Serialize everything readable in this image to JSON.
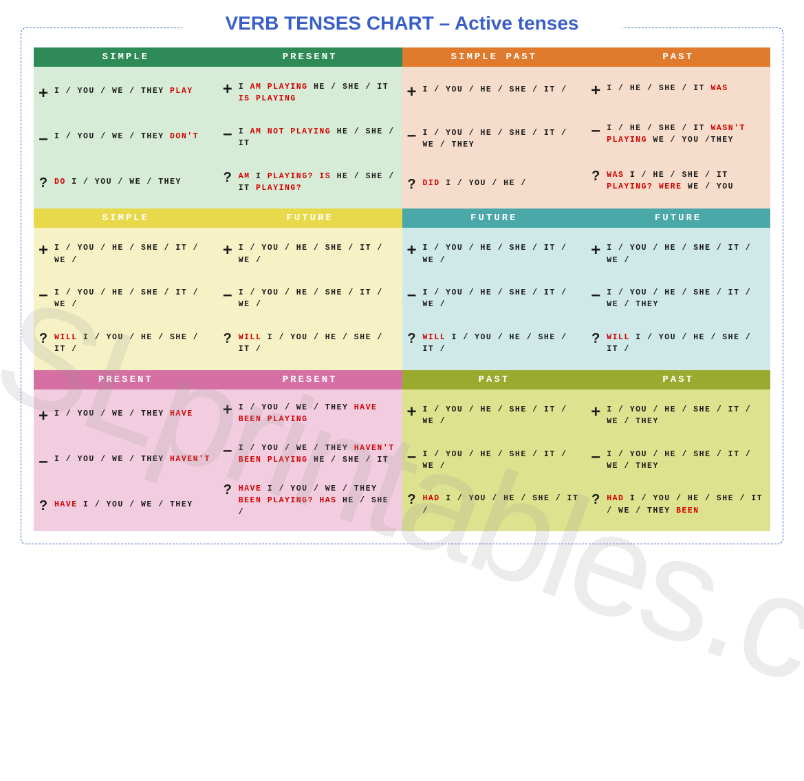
{
  "title": "VERB TENSES CHART – Active tenses",
  "watermark": "SLprintables.com",
  "layout": {
    "cols": 4,
    "rows": 3
  },
  "typography": {
    "title_fontsize": 28,
    "title_color": "#3b5fc9",
    "header_fontsize": 14,
    "body_fontsize": 11.5,
    "highlight_color": "#d40000",
    "symbol_color": "#1a1a1a"
  },
  "frame": {
    "border_color": "#3b5fc9",
    "style": "dashed",
    "radius": 8
  },
  "cells": [
    {
      "header": "Simple",
      "header_bg": "#2e8b57",
      "body_bg": "#d6ecd6",
      "plus": [
        {
          "t": "I / you / we / they ",
          "r": 0
        },
        {
          "t": "play",
          "r": 1
        }
      ],
      "minus": [
        {
          "t": "I / you / we / they ",
          "r": 0
        },
        {
          "t": "don't",
          "r": 1
        }
      ],
      "quest": [
        {
          "t": "Do",
          "r": 1
        },
        {
          "t": " I / you / we / they",
          "r": 0
        }
      ]
    },
    {
      "header": "Present",
      "header_bg": "#2e8b57",
      "body_bg": "#d6ecd6",
      "plus": [
        {
          "t": "I ",
          "r": 0
        },
        {
          "t": "am playing",
          "r": 1
        },
        {
          "t": " he / she / it ",
          "r": 0
        },
        {
          "t": "is playing",
          "r": 1
        }
      ],
      "minus": [
        {
          "t": "I ",
          "r": 0
        },
        {
          "t": "am not playing",
          "r": 1
        },
        {
          "t": " he / she / it",
          "r": 0
        }
      ],
      "quest": [
        {
          "t": "Am",
          "r": 1
        },
        {
          "t": " I ",
          "r": 0
        },
        {
          "t": "playing? Is",
          "r": 1
        },
        {
          "t": " he / she / it ",
          "r": 0
        },
        {
          "t": "playing?",
          "r": 1
        }
      ]
    },
    {
      "header": "Simple Past",
      "header_bg": "#e07b2e",
      "body_bg": "#f5dccb",
      "plus": [
        {
          "t": "I / you / he / she / it /",
          "r": 0
        }
      ],
      "minus": [
        {
          "t": "I / you / he / she / it / we / they",
          "r": 0
        }
      ],
      "quest": [
        {
          "t": "Did",
          "r": 1
        },
        {
          "t": " I / you / he /",
          "r": 0
        }
      ]
    },
    {
      "header": "Past",
      "header_bg": "#e07b2e",
      "body_bg": "#f5dccb",
      "plus": [
        {
          "t": "I / he / she / it ",
          "r": 0
        },
        {
          "t": "was",
          "r": 1
        }
      ],
      "minus": [
        {
          "t": "I / he / she / it ",
          "r": 0
        },
        {
          "t": "wasn't playing",
          "r": 1
        },
        {
          "t": " we / you /they",
          "r": 0
        }
      ],
      "quest": [
        {
          "t": "Was",
          "r": 1
        },
        {
          "t": " I / he / she / it ",
          "r": 0
        },
        {
          "t": "playing? Were",
          "r": 1
        },
        {
          "t": " we / you",
          "r": 0
        }
      ]
    },
    {
      "header": "Simple",
      "header_bg": "#e8d94a",
      "body_bg": "#f6f2c6",
      "plus": [
        {
          "t": "I / you / he / she / it / we /",
          "r": 0
        }
      ],
      "minus": [
        {
          "t": "I / you / he / she / it / we /",
          "r": 0
        }
      ],
      "quest": [
        {
          "t": "Will",
          "r": 1
        },
        {
          "t": " I / you / he / she / it /",
          "r": 0
        }
      ]
    },
    {
      "header": "Future",
      "header_bg": "#e8d94a",
      "body_bg": "#f6f2c6",
      "plus": [
        {
          "t": "I / you / he / she / it / we /",
          "r": 0
        }
      ],
      "minus": [
        {
          "t": "I / you / he / she / it / we /",
          "r": 0
        }
      ],
      "quest": [
        {
          "t": "Will",
          "r": 1
        },
        {
          "t": " I / you / he / she / it /",
          "r": 0
        }
      ]
    },
    {
      "header": "Future",
      "header_bg": "#4aa8a8",
      "body_bg": "#cfe8e8",
      "plus": [
        {
          "t": "I / you / he / she / it / we /",
          "r": 0
        }
      ],
      "minus": [
        {
          "t": "I / you / he / she / it / we /",
          "r": 0
        }
      ],
      "quest": [
        {
          "t": "Will",
          "r": 1
        },
        {
          "t": " I / you / he / she / it /",
          "r": 0
        }
      ]
    },
    {
      "header": "Future",
      "header_bg": "#4aa8a8",
      "body_bg": "#cfe8e8",
      "plus": [
        {
          "t": "I / you / he / she / it / we /",
          "r": 0
        }
      ],
      "minus": [
        {
          "t": "I / you / he / she / it / we / they",
          "r": 0
        }
      ],
      "quest": [
        {
          "t": "Will",
          "r": 1
        },
        {
          "t": " I / you / he / she / it /",
          "r": 0
        }
      ]
    },
    {
      "header": "Present",
      "header_bg": "#d66fa3",
      "body_bg": "#f2cde0",
      "plus": [
        {
          "t": "I / you / we / they ",
          "r": 0
        },
        {
          "t": "have",
          "r": 1
        }
      ],
      "minus": [
        {
          "t": "I / you / we / they ",
          "r": 0
        },
        {
          "t": "haven't",
          "r": 1
        }
      ],
      "quest": [
        {
          "t": "Have",
          "r": 1
        },
        {
          "t": " I / you / we / they",
          "r": 0
        }
      ]
    },
    {
      "header": "Present",
      "header_bg": "#d66fa3",
      "body_bg": "#f2cde0",
      "plus": [
        {
          "t": "I / you / we / they ",
          "r": 0
        },
        {
          "t": "have been playing",
          "r": 1
        }
      ],
      "minus": [
        {
          "t": "I / you / we / they ",
          "r": 0
        },
        {
          "t": "haven't been playing",
          "r": 1
        },
        {
          "t": " he / she / it",
          "r": 0
        }
      ],
      "quest": [
        {
          "t": "Have",
          "r": 1
        },
        {
          "t": " I / you / we / they ",
          "r": 0
        },
        {
          "t": "been playing? Has",
          "r": 1
        },
        {
          "t": " he / she /",
          "r": 0
        }
      ]
    },
    {
      "header": "Past",
      "header_bg": "#9aaa2e",
      "body_bg": "#dde28f",
      "plus": [
        {
          "t": "I / you / he / she / it / we /",
          "r": 0
        }
      ],
      "minus": [
        {
          "t": "I / you / he / she / it / we /",
          "r": 0
        }
      ],
      "quest": [
        {
          "t": "Had",
          "r": 1
        },
        {
          "t": " I / you / he / she / it /",
          "r": 0
        }
      ]
    },
    {
      "header": "Past",
      "header_bg": "#9aaa2e",
      "body_bg": "#dde28f",
      "plus": [
        {
          "t": "I / you / he / she / it / we / they",
          "r": 0
        }
      ],
      "minus": [
        {
          "t": "I / you / he / she / it / we / they",
          "r": 0
        }
      ],
      "quest": [
        {
          "t": "Had",
          "r": 1
        },
        {
          "t": " I / you / he / she / it / we / they ",
          "r": 0
        },
        {
          "t": "been",
          "r": 1
        }
      ]
    }
  ]
}
